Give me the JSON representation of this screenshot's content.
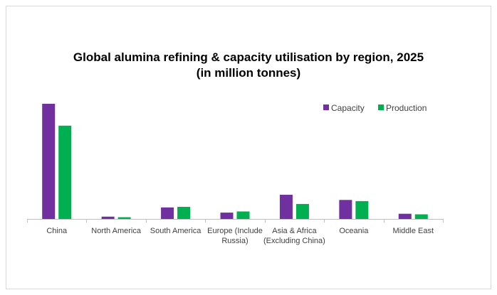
{
  "chart_data": {
    "type": "bar",
    "title_lines": [
      "Global alumina refining & capacity utilisation by region, 2025",
      "(in million tonnes)"
    ],
    "categories": [
      [
        "China"
      ],
      [
        "North America"
      ],
      [
        "South America"
      ],
      [
        "Europe (Include",
        "Russia)"
      ],
      [
        "Asia & Africa",
        "(Excluding China)"
      ],
      [
        "Oceania"
      ],
      [
        "Middle East"
      ]
    ],
    "series": [
      {
        "name": "Capacity",
        "color": "#7030a0",
        "values": [
          100,
          2,
          10,
          5.5,
          21,
          16.5,
          4.5
        ]
      },
      {
        "name": "Production",
        "color": "#00b050",
        "values": [
          81,
          1.5,
          10.5,
          6.5,
          13,
          15.5,
          4
        ]
      }
    ],
    "ylim": [
      0,
      100
    ],
    "grid": false,
    "legend_position": "top-right",
    "axis_color": "#bfbfbf"
  }
}
